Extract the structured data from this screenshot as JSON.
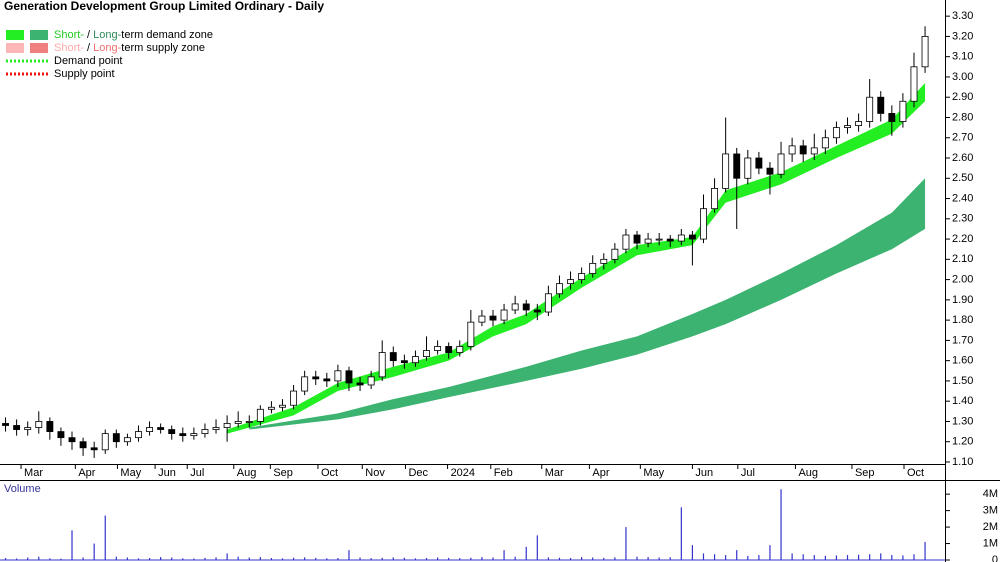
{
  "chart_data": [
    {
      "type": "candlestick",
      "title": "Generation Development Group Limited Ordinary - Daily",
      "up_color": "#ffffff",
      "down_color": "#000000",
      "open": [
        1.29,
        1.28,
        1.26,
        1.27,
        1.3,
        1.25,
        1.22,
        1.2,
        1.17,
        1.16,
        1.24,
        1.2,
        1.22,
        1.25,
        1.27,
        1.26,
        1.24,
        1.23,
        1.24,
        1.26,
        1.27,
        1.29,
        1.3,
        1.3,
        1.36,
        1.37,
        1.38,
        1.45,
        1.52,
        1.51,
        1.5,
        1.55,
        1.49,
        1.48,
        1.52,
        1.64,
        1.6,
        1.59,
        1.62,
        1.65,
        1.67,
        1.64,
        1.67,
        1.79,
        1.82,
        1.8,
        1.85,
        1.88,
        1.85,
        1.84,
        1.93,
        1.98,
        2.0,
        2.03,
        2.08,
        2.1,
        2.15,
        2.22,
        2.18,
        2.2,
        2.2,
        2.19,
        2.22,
        2.2,
        2.35,
        2.45,
        2.62,
        2.5,
        2.6,
        2.55,
        2.52,
        2.62,
        2.66,
        2.62,
        2.65,
        2.7,
        2.75,
        2.76,
        2.78,
        2.9,
        2.82,
        2.78,
        2.88,
        3.05
      ],
      "high": [
        1.32,
        1.31,
        1.3,
        1.35,
        1.32,
        1.27,
        1.25,
        1.22,
        1.2,
        1.26,
        1.26,
        1.24,
        1.28,
        1.3,
        1.29,
        1.28,
        1.27,
        1.27,
        1.29,
        1.31,
        1.33,
        1.35,
        1.33,
        1.38,
        1.4,
        1.41,
        1.48,
        1.55,
        1.55,
        1.54,
        1.58,
        1.57,
        1.52,
        1.55,
        1.7,
        1.67,
        1.63,
        1.65,
        1.72,
        1.7,
        1.69,
        1.7,
        1.85,
        1.85,
        1.85,
        1.88,
        1.92,
        1.9,
        1.88,
        1.97,
        2.02,
        2.04,
        2.06,
        2.12,
        2.13,
        2.18,
        2.25,
        2.24,
        2.23,
        2.23,
        2.22,
        2.25,
        2.24,
        2.42,
        2.5,
        2.8,
        2.65,
        2.64,
        2.63,
        2.58,
        2.68,
        2.7,
        2.69,
        2.72,
        2.74,
        2.78,
        2.8,
        2.82,
        2.99,
        2.93,
        2.86,
        2.92,
        3.12,
        3.25
      ],
      "low": [
        1.25,
        1.23,
        1.23,
        1.24,
        1.21,
        1.18,
        1.16,
        1.13,
        1.12,
        1.14,
        1.17,
        1.18,
        1.2,
        1.23,
        1.24,
        1.21,
        1.2,
        1.21,
        1.22,
        1.24,
        1.2,
        1.27,
        1.27,
        1.28,
        1.34,
        1.35,
        1.36,
        1.43,
        1.48,
        1.47,
        1.47,
        1.45,
        1.45,
        1.46,
        1.5,
        1.57,
        1.56,
        1.57,
        1.6,
        1.63,
        1.61,
        1.62,
        1.65,
        1.77,
        1.77,
        1.78,
        1.83,
        1.82,
        1.8,
        1.82,
        1.91,
        1.95,
        1.98,
        2.01,
        2.05,
        2.08,
        2.13,
        2.15,
        2.16,
        2.17,
        2.16,
        2.17,
        2.07,
        2.18,
        2.33,
        2.43,
        2.25,
        2.47,
        2.52,
        2.42,
        2.5,
        2.58,
        2.58,
        2.59,
        2.62,
        2.67,
        2.72,
        2.73,
        2.75,
        2.78,
        2.71,
        2.75,
        2.85,
        3.02
      ],
      "close": [
        1.28,
        1.26,
        1.27,
        1.3,
        1.25,
        1.22,
        1.2,
        1.17,
        1.16,
        1.24,
        1.2,
        1.22,
        1.25,
        1.27,
        1.26,
        1.24,
        1.23,
        1.24,
        1.26,
        1.27,
        1.29,
        1.3,
        1.3,
        1.36,
        1.37,
        1.38,
        1.45,
        1.52,
        1.51,
        1.5,
        1.55,
        1.49,
        1.48,
        1.52,
        1.64,
        1.6,
        1.59,
        1.62,
        1.65,
        1.67,
        1.64,
        1.67,
        1.79,
        1.82,
        1.8,
        1.85,
        1.88,
        1.85,
        1.84,
        1.93,
        1.98,
        2.0,
        2.03,
        2.08,
        2.1,
        2.15,
        2.22,
        2.18,
        2.2,
        2.2,
        2.19,
        2.22,
        2.2,
        2.35,
        2.45,
        2.62,
        2.5,
        2.6,
        2.55,
        2.52,
        2.62,
        2.66,
        2.62,
        2.65,
        2.7,
        2.75,
        2.76,
        2.78,
        2.9,
        2.82,
        2.78,
        2.88,
        3.05,
        3.2
      ],
      "zones": [
        {
          "color": "#3cb371",
          "x": [
            22,
            30,
            35,
            40,
            47,
            52,
            57,
            62,
            65,
            70,
            75,
            80,
            83
          ],
          "lower": [
            1.26,
            1.31,
            1.36,
            1.42,
            1.5,
            1.56,
            1.63,
            1.72,
            1.78,
            1.9,
            2.03,
            2.15,
            2.25
          ],
          "upper": [
            1.27,
            1.34,
            1.41,
            1.47,
            1.57,
            1.65,
            1.72,
            1.83,
            1.9,
            2.03,
            2.17,
            2.33,
            2.5
          ]
        },
        {
          "color": "#22ee22",
          "x": [
            20,
            26,
            30,
            35,
            40,
            44,
            47,
            52,
            57,
            62,
            65,
            70,
            75,
            80,
            83
          ],
          "lower": [
            1.24,
            1.33,
            1.45,
            1.52,
            1.6,
            1.72,
            1.78,
            1.96,
            2.12,
            2.17,
            2.38,
            2.47,
            2.6,
            2.72,
            2.88
          ],
          "upper": [
            1.26,
            1.37,
            1.49,
            1.57,
            1.64,
            1.77,
            1.83,
            2.01,
            2.17,
            2.21,
            2.44,
            2.53,
            2.66,
            2.79,
            2.97
          ]
        }
      ],
      "legend": [
        {
          "swatches": [
            "#22ee22",
            "#3cb371"
          ],
          "parts": [
            {
              "text": "Short-",
              "color": "#22cc22"
            },
            {
              "text": " / "
            },
            {
              "text": "Long-",
              "color": "#2e8b57"
            },
            {
              "text": "term demand zone"
            }
          ]
        },
        {
          "swatches": [
            "#ffb6b6",
            "#f08080"
          ],
          "parts": [
            {
              "text": "Short-",
              "color": "#ffaaaa"
            },
            {
              "text": " / "
            },
            {
              "text": "Long-",
              "color": "#f07070"
            },
            {
              "text": "term supply zone"
            }
          ]
        },
        {
          "dotted": "#22ee22",
          "parts": [
            {
              "text": "Demand point"
            }
          ]
        },
        {
          "dotted": "#ee1111",
          "parts": [
            {
              "text": "Supply point"
            }
          ]
        }
      ],
      "xlim": [
        -0.5,
        84.8
      ],
      "xticks": [
        {
          "value": 1.4,
          "label": "Mar"
        },
        {
          "value": 6.3,
          "label": "Apr"
        },
        {
          "value": 10.1,
          "label": "May"
        },
        {
          "value": 13.5,
          "label": "Jun"
        },
        {
          "value": 16.4,
          "label": "Jul"
        },
        {
          "value": 20.6,
          "label": "Aug"
        },
        {
          "value": 23.9,
          "label": "Sep"
        },
        {
          "value": 28.2,
          "label": "Oct"
        },
        {
          "value": 32.2,
          "label": "Nov"
        },
        {
          "value": 36.1,
          "label": "Dec"
        },
        {
          "value": 39.9,
          "label": "2024"
        },
        {
          "value": 43.8,
          "label": "Feb"
        },
        {
          "value": 48.4,
          "label": "Mar"
        },
        {
          "value": 52.7,
          "label": "Apr"
        },
        {
          "value": 57.3,
          "label": "May"
        },
        {
          "value": 62.0,
          "label": "Jun"
        },
        {
          "value": 66.1,
          "label": "Jul"
        },
        {
          "value": 71.3,
          "label": "Aug"
        },
        {
          "value": 76.4,
          "label": "Sep"
        },
        {
          "value": 81.1,
          "label": "Oct"
        }
      ],
      "ylim": [
        1.09,
        3.36
      ],
      "yticks": [
        {
          "value": 1.1,
          "label": "1.10"
        },
        {
          "value": 1.2,
          "label": "1.20"
        },
        {
          "value": 1.3,
          "label": "1.30"
        },
        {
          "value": 1.4,
          "label": "1.40"
        },
        {
          "value": 1.5,
          "label": "1.50"
        },
        {
          "value": 1.6,
          "label": "1.60"
        },
        {
          "value": 1.7,
          "label": "1.70"
        },
        {
          "value": 1.8,
          "label": "1.80"
        },
        {
          "value": 1.9,
          "label": "1.90"
        },
        {
          "value": 2.0,
          "label": "2.00"
        },
        {
          "value": 2.1,
          "label": "2.10"
        },
        {
          "value": 2.2,
          "label": "2.20"
        },
        {
          "value": 2.3,
          "label": "2.30"
        },
        {
          "value": 2.4,
          "label": "2.40"
        },
        {
          "value": 2.5,
          "label": "2.50"
        },
        {
          "value": 2.6,
          "label": "2.60"
        },
        {
          "value": 2.7,
          "label": "2.70"
        },
        {
          "value": 2.8,
          "label": "2.80"
        },
        {
          "value": 2.9,
          "label": "2.90"
        },
        {
          "value": 3.0,
          "label": "3.00"
        },
        {
          "value": 3.1,
          "label": "3.10"
        },
        {
          "value": 3.2,
          "label": "3.20"
        },
        {
          "value": 3.3,
          "label": "3.30"
        }
      ]
    },
    {
      "type": "bar",
      "title": "Volume",
      "color": "#3333cc",
      "values": [
        120000,
        90000,
        150000,
        200000,
        100000,
        80000,
        1800000,
        150000,
        1000000,
        2700000,
        200000,
        150000,
        100000,
        120000,
        180000,
        150000,
        100000,
        90000,
        130000,
        160000,
        400000,
        200000,
        150000,
        180000,
        120000,
        100000,
        140000,
        160000,
        130000,
        100000,
        120000,
        600000,
        150000,
        110000,
        130000,
        160000,
        140000,
        100000,
        120000,
        150000,
        130000,
        110000,
        140000,
        180000,
        150000,
        600000,
        200000,
        800000,
        1500000,
        160000,
        140000,
        120000,
        180000,
        150000,
        130000,
        160000,
        2000000,
        200000,
        180000,
        150000,
        170000,
        3200000,
        900000,
        400000,
        350000,
        300000,
        600000,
        250000,
        300000,
        900000,
        4300000,
        400000,
        350000,
        300000,
        250000,
        280000,
        300000,
        320000,
        350000,
        400000,
        300000,
        280000,
        350000,
        1100000
      ],
      "ylim": [
        0,
        4800000
      ],
      "yticks": [
        {
          "value": 0,
          "label": "0"
        },
        {
          "value": 1000000,
          "label": "1M"
        },
        {
          "value": 2000000,
          "label": "2M"
        },
        {
          "value": 3000000,
          "label": "3M"
        },
        {
          "value": 4000000,
          "label": "4M"
        }
      ]
    }
  ]
}
